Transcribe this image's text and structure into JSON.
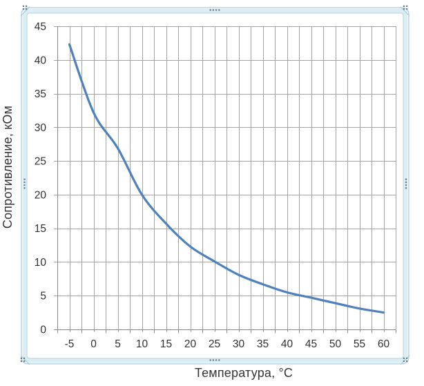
{
  "canvas": {
    "background": "#ffffff"
  },
  "selection_frame": {
    "present": true,
    "fill": "#dcedf4",
    "border": "#a9c9d6",
    "inner_border": "#b4d2dd",
    "highlight": "#f0f8fb",
    "fold_line": "#a3c4d1",
    "handle_dot_color": "#697a85"
  },
  "chart_data": {
    "type": "line",
    "title": "",
    "xlabel": "Температура,  °С",
    "ylabel": "Сопротивление, кОм",
    "x": [
      -5,
      0,
      5,
      10,
      15,
      20,
      25,
      30,
      35,
      40,
      45,
      50,
      55,
      60
    ],
    "x_tick_labels": [
      "-5",
      "0",
      "5",
      "10",
      "15",
      "20",
      "25",
      "30",
      "35",
      "40",
      "45",
      "50",
      "55",
      "60"
    ],
    "y_tick_labels": [
      "0",
      "5",
      "10",
      "15",
      "20",
      "25",
      "30",
      "35",
      "40",
      "45"
    ],
    "series": [
      {
        "name": "Сопротивление, кОм",
        "color": "#4F81BD",
        "values": [
          42.3,
          32.2,
          26.9,
          20.0,
          15.7,
          12.3,
          10.1,
          8.1,
          6.7,
          5.5,
          4.7,
          3.9,
          3.1,
          2.5
        ]
      }
    ],
    "ylim": [
      0,
      45
    ],
    "y_tick_step": 5,
    "x_tick_step": 5,
    "x_minor_step": 2.5,
    "smoothed": true,
    "legend": "none",
    "grid": {
      "horizontal": "major",
      "vertical": "major+minor"
    },
    "grid_color": "#a3a3a3",
    "axis_color": "#8a8a8a",
    "tick_label_color": "#303030"
  }
}
